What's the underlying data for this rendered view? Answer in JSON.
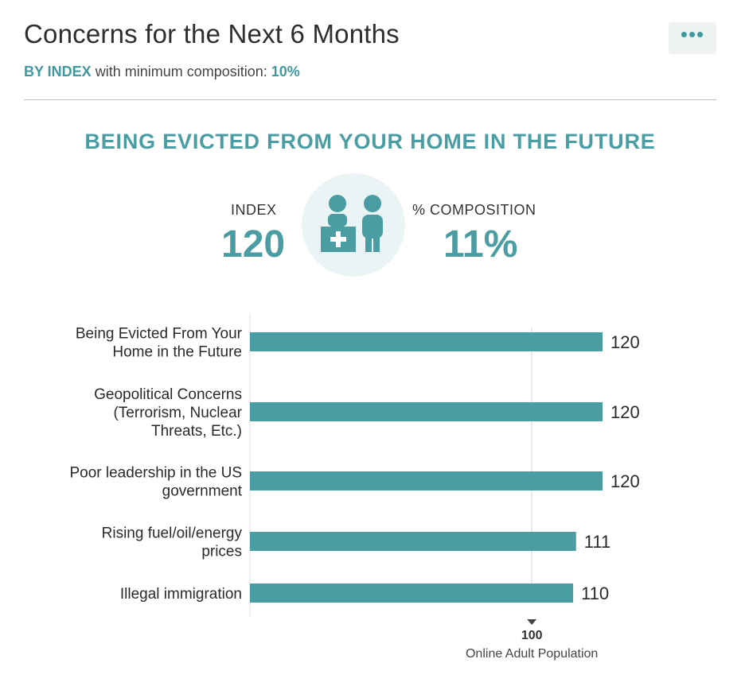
{
  "header": {
    "title": "Concerns for the Next 6 Months",
    "subtitle_prefix": "BY INDEX",
    "subtitle_mid": " with minimum composition: ",
    "subtitle_value": "10%",
    "more_icon": "more-horizontal-icon"
  },
  "highlight": {
    "title": "BEING EVICTED FROM YOUR HOME IN THE FUTURE",
    "index_label": "INDEX",
    "index_value": "120",
    "composition_label": "% COMPOSITION",
    "composition_value": "11%",
    "icon": "people-at-counter-icon"
  },
  "colors": {
    "accent": "#4a9ea3",
    "bar": "#4a9ea3",
    "icon_bg": "#eaf4f4"
  },
  "chart_data": {
    "type": "bar",
    "orientation": "horizontal",
    "categories": [
      [
        "Being Evicted From Your",
        "Home in the Future"
      ],
      [
        "Geopolitical Concerns",
        "(Terrorism, Nuclear",
        "Threats, Etc.)"
      ],
      [
        "Poor leadership in the US",
        "government"
      ],
      [
        "Rising fuel/oil/energy",
        "prices"
      ],
      [
        "Illegal immigration"
      ]
    ],
    "values": [
      120,
      120,
      120,
      111,
      110
    ],
    "value_labels": [
      "120",
      "120",
      "120",
      "111",
      "110"
    ],
    "baseline": {
      "value": 100,
      "label": "100",
      "caption": "Online Adult Population"
    },
    "xlim": [
      0,
      131
    ]
  }
}
